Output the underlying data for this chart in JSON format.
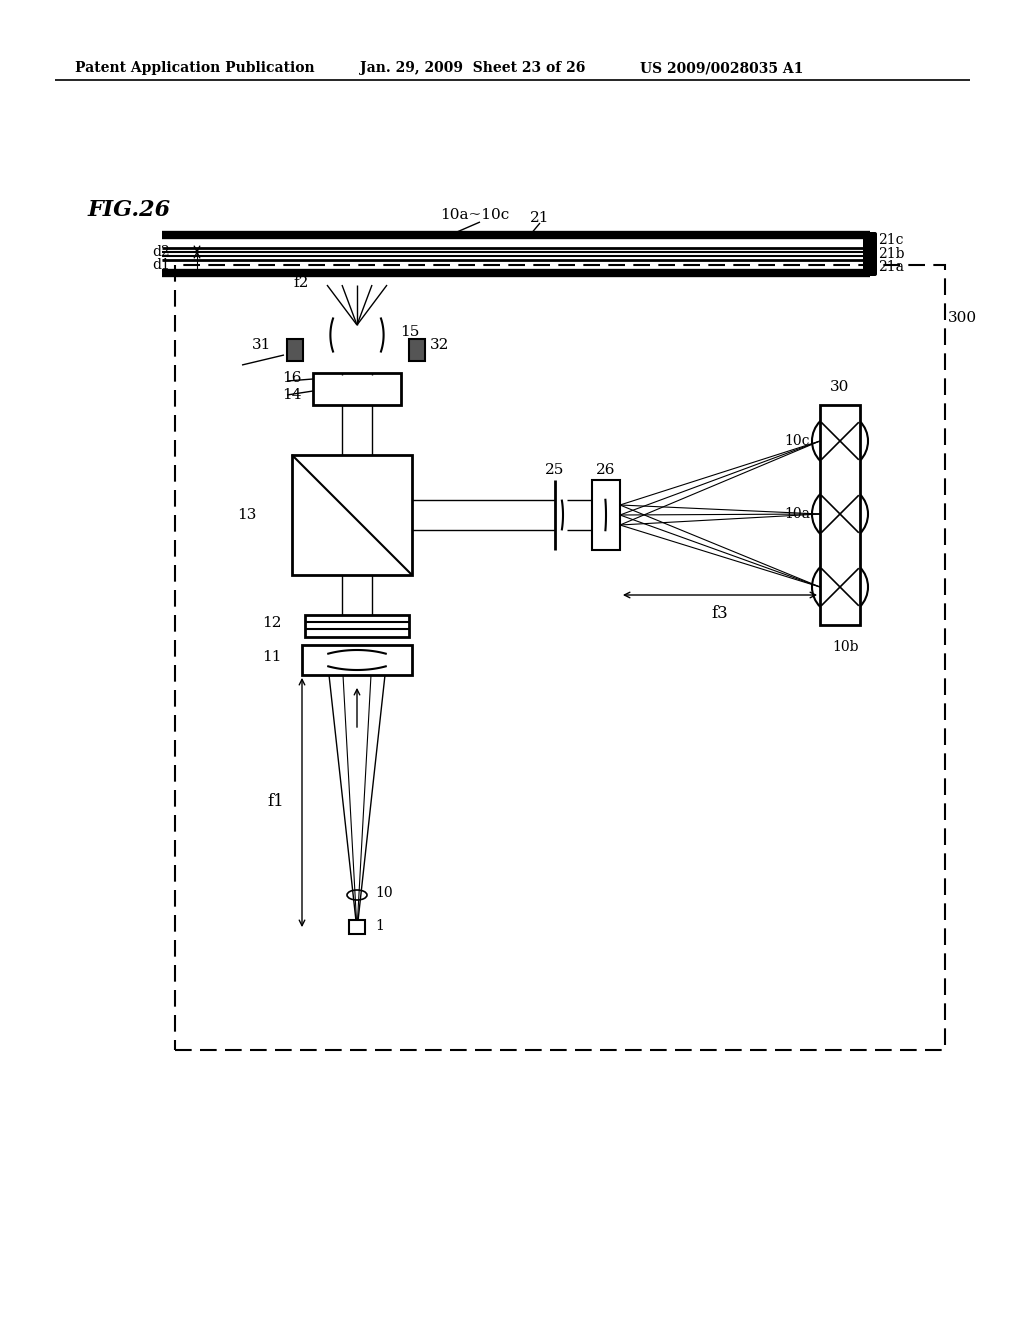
{
  "bg_color": "#ffffff",
  "header_left": "Patent Application Publication",
  "header_mid": "Jan. 29, 2009  Sheet 23 of 26",
  "header_right": "US 2009/0028035 A1",
  "fig_label": "FIG.26"
}
